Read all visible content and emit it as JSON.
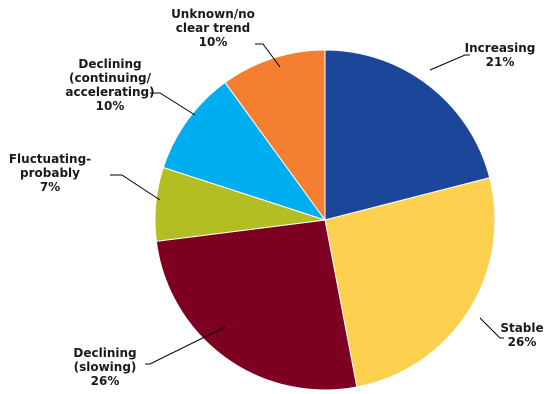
{
  "chart_data": {
    "type": "pie",
    "slices": [
      {
        "label": [
          "Increasing"
        ],
        "pct_text": "21%",
        "value": 21,
        "color": "#1B4699"
      },
      {
        "label": [
          "Stable"
        ],
        "pct_text": "26%",
        "value": 26,
        "color": "#FDD04F"
      },
      {
        "label": [
          "Declining",
          "(slowing)"
        ],
        "pct_text": "26%",
        "value": 26,
        "color": "#7D0022"
      },
      {
        "label": [
          "Fluctuating-",
          "probably"
        ],
        "pct_text": "7%",
        "value": 7,
        "color": "#B3BE22"
      },
      {
        "label": [
          "Declining",
          "(continuing/",
          "accelerating)"
        ],
        "pct_text": "10%",
        "value": 10,
        "color": "#00ADEF"
      },
      {
        "label": [
          "Unknown/no",
          "clear trend"
        ],
        "pct_text": "10%",
        "value": 10,
        "color": "#F47F30"
      }
    ]
  }
}
